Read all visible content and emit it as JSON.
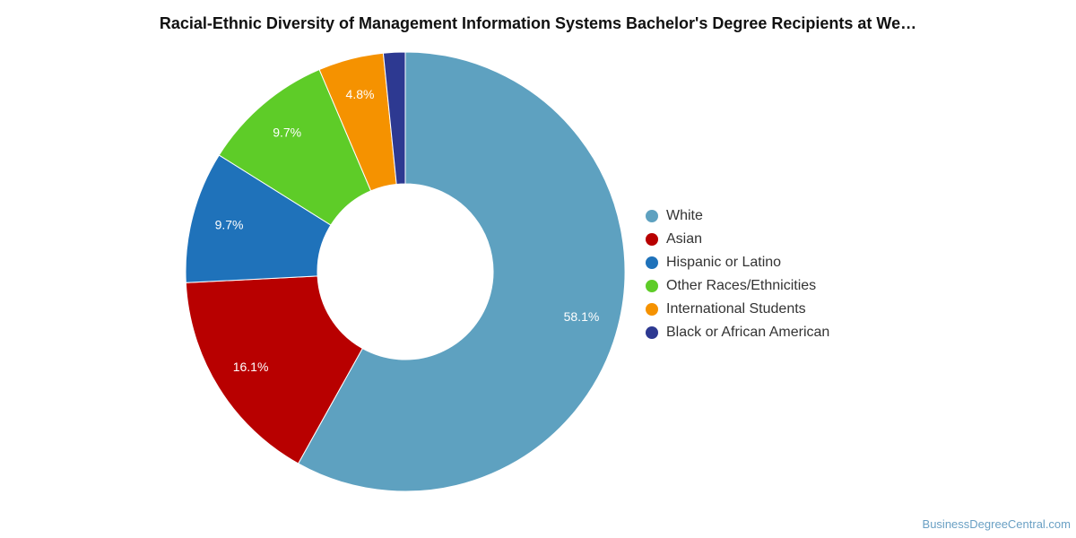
{
  "chart_data": {
    "type": "pie",
    "title": "Racial-Ethnic Diversity of Management Information Systems Bachelor's Degree Recipients at We…",
    "donut": true,
    "legend_position": "right",
    "categories": [
      "White",
      "Asian",
      "Hispanic or Latino",
      "Other Races/Ethnicities",
      "International Students",
      "Black or African American"
    ],
    "values": [
      58.1,
      16.1,
      9.7,
      9.7,
      4.8,
      1.6
    ],
    "data_labels": [
      "58.1%",
      "16.1%",
      "9.7%",
      "9.7%",
      "4.8%",
      ""
    ],
    "colors": [
      "#5ea1c0",
      "#b80000",
      "#1f72ba",
      "#5ecc28",
      "#f59200",
      "#2d3991"
    ]
  },
  "watermark": "BusinessDegreeCentral.com"
}
